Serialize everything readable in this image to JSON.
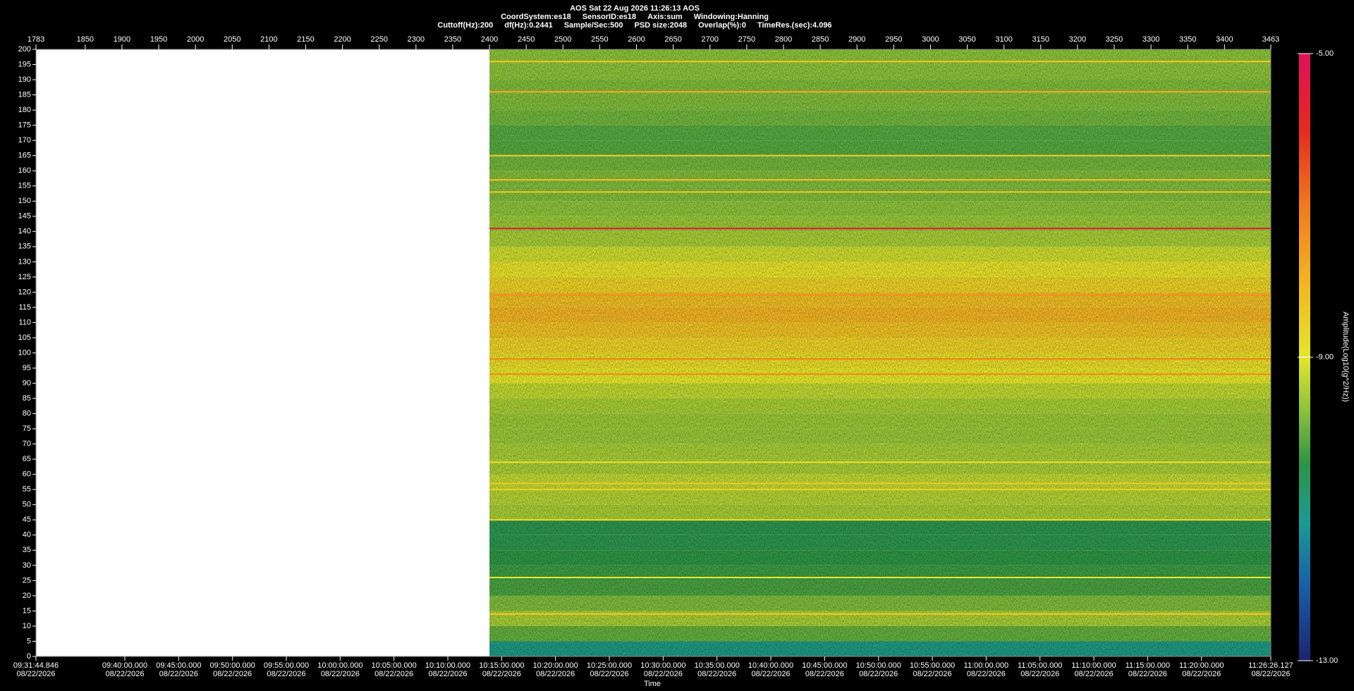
{
  "chart_data": {
    "type": "spectrogram",
    "header": {
      "title": "AOS  Sat 22 Aug 2026 11:26:13  AOS",
      "line2": [
        "CoordSystem:es18",
        "SensorID:es18",
        "Axis:sum",
        "Windowing:Hanning"
      ],
      "line3": [
        "Cuttoff(Hz):200",
        "df(Hz):0.2441",
        "Sample/Sec:500",
        "PSD size:2048",
        "Overlap(%):0",
        "TimeRes.(sec):4.096"
      ]
    },
    "xlabel": "Time",
    "xlim": [
      1783,
      3463
    ],
    "xticks": [
      1783,
      1850,
      1900,
      1950,
      2000,
      2050,
      2100,
      2150,
      2200,
      2250,
      2300,
      2350,
      2400,
      2450,
      2500,
      2550,
      2600,
      2650,
      2700,
      2750,
      2800,
      2850,
      2900,
      2950,
      3000,
      3050,
      3100,
      3150,
      3200,
      3250,
      3300,
      3350,
      3400,
      3463
    ],
    "time_ticks": [
      {
        "value": 1783,
        "label": "09:31:44.846",
        "date": "08/22/2026"
      },
      {
        "value": 1903.89,
        "label": "09:40:00.000",
        "date": "08/22/2026"
      },
      {
        "value": 1977.13,
        "label": "09:45:00.000",
        "date": "08/22/2026"
      },
      {
        "value": 2050.37,
        "label": "09:50:00.000",
        "date": "08/22/2026"
      },
      {
        "value": 2123.61,
        "label": "09:55:00.000",
        "date": "08/22/2026"
      },
      {
        "value": 2196.86,
        "label": "10:00:00.000",
        "date": "08/22/2026"
      },
      {
        "value": 2270.1,
        "label": "10:05:00.000",
        "date": "08/22/2026"
      },
      {
        "value": 2343.34,
        "label": "10:10:00.000",
        "date": "08/22/2026"
      },
      {
        "value": 2416.58,
        "label": "10:15:00.000",
        "date": "08/22/2026"
      },
      {
        "value": 2489.82,
        "label": "10:20:00.000",
        "date": "08/22/2026"
      },
      {
        "value": 2563.07,
        "label": "10:25:00.000",
        "date": "08/22/2026"
      },
      {
        "value": 2636.31,
        "label": "10:30:00.000",
        "date": "08/22/2026"
      },
      {
        "value": 2709.55,
        "label": "10:35:00.000",
        "date": "08/22/2026"
      },
      {
        "value": 2782.79,
        "label": "10:40:00.000",
        "date": "08/22/2026"
      },
      {
        "value": 2856.04,
        "label": "10:45:00.000",
        "date": "08/22/2026"
      },
      {
        "value": 2929.28,
        "label": "10:50:00.000",
        "date": "08/22/2026"
      },
      {
        "value": 3002.52,
        "label": "10:55:00.000",
        "date": "08/22/2026"
      },
      {
        "value": 3075.76,
        "label": "11:00:00.000",
        "date": "08/22/2026"
      },
      {
        "value": 3149.0,
        "label": "11:05:00.000",
        "date": "08/22/2026"
      },
      {
        "value": 3222.25,
        "label": "11:10:00.000",
        "date": "08/22/2026"
      },
      {
        "value": 3295.49,
        "label": "11:15:00.000",
        "date": "08/22/2026"
      },
      {
        "value": 3368.73,
        "label": "11:20:00.000",
        "date": "08/22/2026"
      },
      {
        "value": 3463,
        "label": "11:26:26.127",
        "date": "08/22/2026"
      }
    ],
    "ylim": [
      0,
      200
    ],
    "yticks": [
      0,
      5,
      10,
      15,
      20,
      25,
      30,
      35,
      40,
      45,
      50,
      55,
      60,
      65,
      70,
      75,
      80,
      85,
      90,
      95,
      100,
      105,
      110,
      115,
      120,
      125,
      130,
      135,
      140,
      145,
      150,
      155,
      160,
      165,
      170,
      175,
      180,
      185,
      190,
      195,
      200
    ],
    "data_start": 2400,
    "bins": [
      0,
      5,
      10,
      15,
      20,
      25,
      30,
      35,
      40,
      45,
      50,
      55,
      60,
      65,
      70,
      75,
      80,
      85,
      90,
      95,
      100,
      105,
      110,
      115,
      120,
      125,
      130,
      135,
      140,
      145,
      150,
      155,
      160,
      165,
      170,
      175,
      180,
      185,
      190,
      195,
      200
    ],
    "amplitude": [
      -11,
      -10,
      -9.5,
      -9.8,
      -10.2,
      -10.3,
      -10.4,
      -10.5,
      -10.5,
      -9.5,
      -9.4,
      -9.3,
      -9.5,
      -9.5,
      -9.6,
      -9.6,
      -9.5,
      -9.3,
      -9.0,
      -8.8,
      -8.6,
      -8.3,
      -8.0,
      -8.2,
      -8.6,
      -8.9,
      -9.2,
      -9.5,
      -9.6,
      -9.7,
      -9.8,
      -9.8,
      -9.9,
      -10.1,
      -10.1,
      -9.9,
      -9.8,
      -9.8,
      -9.7,
      -9.7
    ],
    "lines": {
      "frequency": [
        141,
        119,
        98,
        93,
        57,
        55,
        45,
        26,
        14,
        165,
        157,
        153,
        196,
        186,
        64
      ],
      "amplitude": [
        -5.8,
        -7.4,
        -7.2,
        -7.3,
        -8.4,
        -8.5,
        -8.7,
        -9.0,
        -8.4,
        -8.5,
        -8.2,
        -8.3,
        -8.3,
        -7.8,
        -8.8
      ]
    },
    "colorbar": {
      "label": "Amplitude(Log10(g^2/Hz))",
      "lim": [
        -13,
        -5
      ],
      "ticks": [
        {
          "value": -5,
          "label": "-5.00"
        },
        {
          "value": -9,
          "label": "-9.00"
        },
        {
          "value": -13,
          "label": "-13.00"
        }
      ]
    },
    "colormap": [
      {
        "value": -13,
        "color": "#1c2470"
      },
      {
        "value": -12,
        "color": "#1a5fa8"
      },
      {
        "value": -11.2,
        "color": "#1a9a96"
      },
      {
        "value": -10.4,
        "color": "#2e9444"
      },
      {
        "value": -9.7,
        "color": "#8cc23a"
      },
      {
        "value": -9,
        "color": "#e6e62a"
      },
      {
        "value": -8,
        "color": "#f2b422"
      },
      {
        "value": -7,
        "color": "#f07a1e"
      },
      {
        "value": -6,
        "color": "#e42a1e"
      },
      {
        "value": -5,
        "color": "#e0105a"
      }
    ]
  }
}
